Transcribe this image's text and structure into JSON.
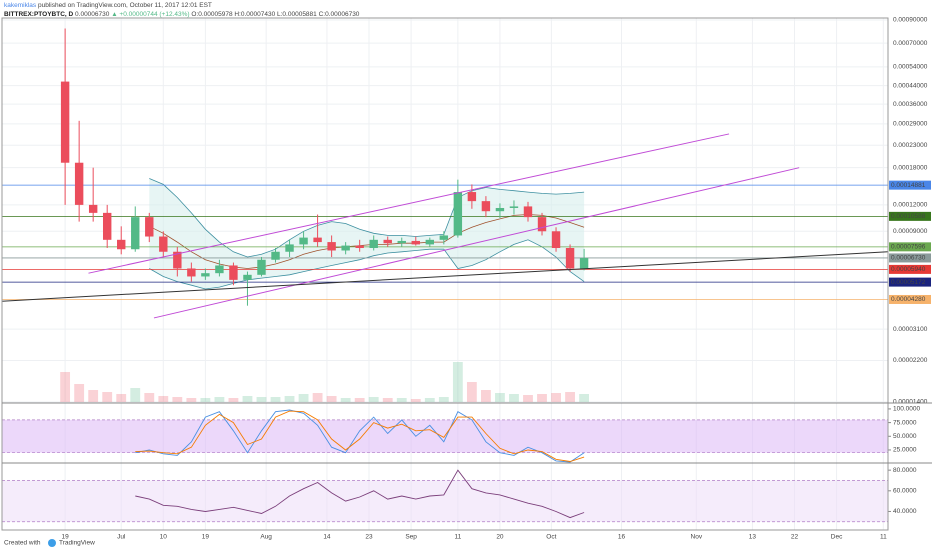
{
  "header": {
    "author": "kakemiklas",
    "byline": "published on TradingView.com, October 11, 2017 12:01 EST",
    "symbol": "BITTREX:PTOYBTC, D",
    "last": "0.00006730",
    "change": "▲ +0.00000744 (+12.43%)",
    "ohlc": "O:0.00005978 H:0.00007430 L:0.00005881 C:0.00006730"
  },
  "chart_data": [
    {
      "type": "candlestick",
      "log_scale": true,
      "grid": true,
      "up_color": "#53b987",
      "down_color": "#eb4d5c",
      "x": [
        0,
        3,
        6,
        9,
        12,
        15,
        18,
        21,
        24,
        27,
        30,
        33,
        36,
        39,
        42,
        45,
        48,
        51,
        54,
        57,
        60,
        63,
        66,
        69,
        72,
        75,
        78,
        81,
        84,
        87,
        90,
        93,
        96,
        99,
        102,
        105,
        108,
        111
      ],
      "open": [
        0.00046,
        0.00019,
        0.00012,
        0.00011,
        8.2e-05,
        7.4e-05,
        0.000105,
        8.5e-05,
        7.2e-05,
        6e-05,
        5.5e-05,
        5.7e-05,
        6.2e-05,
        5.3e-05,
        5.6e-05,
        6.6e-05,
        7.2e-05,
        7.8e-05,
        8.4e-05,
        8e-05,
        7.3e-05,
        7.7e-05,
        7.5e-05,
        8.2e-05,
        7.9e-05,
        8.1e-05,
        7.8e-05,
        8.2e-05,
        8.6e-05,
        0.000138,
        0.000125,
        0.000112,
        0.000116,
        0.000118,
        0.000105,
        9e-05,
        7.5e-05,
        6e-05
      ],
      "high": [
        0.00082,
        0.0003,
        0.00018,
        0.00012,
        9.5e-05,
        0.000118,
        0.00011,
        9e-05,
        7.6e-05,
        6.4e-05,
        6e-05,
        6.6e-05,
        6.4e-05,
        5.8e-05,
        6.8e-05,
        7.5e-05,
        8.2e-05,
        9e-05,
        0.000108,
        8.6e-05,
        8e-05,
        8.2e-05,
        8.6e-05,
        8.5e-05,
        8.4e-05,
        8.5e-05,
        8.4e-05,
        9e-05,
        0.000158,
        0.00015,
        0.000132,
        0.000122,
        0.000126,
        0.000124,
        0.00011,
        9.4e-05,
        7.8e-05,
        7.43e-05
      ],
      "low": [
        0.00012,
        0.0001,
        0.0001,
        7.5e-05,
        7e-05,
        7.2e-05,
        8e-05,
        6.8e-05,
        5.5e-05,
        5.2e-05,
        5.3e-05,
        5.5e-05,
        5e-05,
        4e-05,
        5.5e-05,
        6.4e-05,
        6.8e-05,
        7.4e-05,
        7.6e-05,
        6.8e-05,
        7e-05,
        7.2e-05,
        7.3e-05,
        7.6e-05,
        7.6e-05,
        7.7e-05,
        7.6e-05,
        7.8e-05,
        8.4e-05,
        0.000115,
        0.000105,
        0.000104,
        0.000108,
        0.0001,
        8.6e-05,
        7.2e-05,
        5.8e-05,
        5.88e-05
      ],
      "close": [
        0.00019,
        0.00012,
        0.00011,
        8.2e-05,
        7.4e-05,
        0.000105,
        8.5e-05,
        7.2e-05,
        6e-05,
        5.5e-05,
        5.7e-05,
        6.2e-05,
        5.3e-05,
        5.6e-05,
        6.6e-05,
        7.2e-05,
        7.8e-05,
        8.4e-05,
        8e-05,
        7.3e-05,
        7.7e-05,
        7.5e-05,
        8.2e-05,
        7.9e-05,
        8.1e-05,
        7.8e-05,
        8.2e-05,
        8.6e-05,
        0.000138,
        0.000125,
        0.000112,
        0.000116,
        0.000118,
        0.000105,
        9e-05,
        7.5e-05,
        6e-05,
        6.73e-05
      ],
      "volume": [
        30,
        18,
        12,
        10,
        8,
        14,
        9,
        6,
        5,
        4,
        4,
        5,
        4,
        6,
        5,
        5,
        6,
        8,
        9,
        6,
        4,
        4,
        5,
        4,
        4,
        3,
        4,
        5,
        40,
        20,
        12,
        9,
        8,
        7,
        8,
        9,
        10,
        8
      ],
      "bollinger": {
        "line_color": "#3d8fa0",
        "basis_color": "#a0522d",
        "fill": "#d7efec",
        "upper": [
          null,
          null,
          null,
          null,
          null,
          null,
          0.00016,
          0.00015,
          0.00013,
          0.00011,
          9.2e-05,
          8e-05,
          7.2e-05,
          6.8e-05,
          7e-05,
          7.4e-05,
          8.2e-05,
          9e-05,
          9.6e-05,
          0.0001,
          9.8e-05,
          9.2e-05,
          8.8e-05,
          8.6e-05,
          8.6e-05,
          8.5e-05,
          8.6e-05,
          8.7e-05,
          0.00013,
          0.00014,
          0.000145,
          0.000142,
          0.00014,
          0.000138,
          0.000136,
          0.000135,
          0.000136,
          0.000138
        ],
        "basis": [
          null,
          null,
          null,
          null,
          null,
          null,
          9.5e-05,
          8.8e-05,
          8e-05,
          7.2e-05,
          6.6e-05,
          6.3e-05,
          6.1e-05,
          6e-05,
          6.1e-05,
          6.3e-05,
          6.6e-05,
          7e-05,
          7.3e-05,
          7.5e-05,
          7.6e-05,
          7.7e-05,
          7.8e-05,
          7.8e-05,
          7.9e-05,
          7.9e-05,
          8e-05,
          8e-05,
          8.8e-05,
          9.4e-05,
          9.9e-05,
          0.000103,
          0.000107,
          0.000108,
          0.000107,
          0.000104,
          9.9e-05,
          9.4e-05
        ],
        "lower": [
          null,
          null,
          null,
          null,
          null,
          null,
          6e-05,
          5.5e-05,
          5.2e-05,
          5e-05,
          4.8e-05,
          4.9e-05,
          5.1e-05,
          5.3e-05,
          5.4e-05,
          5.5e-05,
          5.6e-05,
          5.8e-05,
          6e-05,
          6.2e-05,
          6.4e-05,
          6.6e-05,
          6.9e-05,
          7.1e-05,
          7.2e-05,
          7.3e-05,
          7.4e-05,
          7.4e-05,
          6e-05,
          6.2e-05,
          6.6e-05,
          7.2e-05,
          7.8e-05,
          8.2e-05,
          7.6e-05,
          6.8e-05,
          5.8e-05,
          5.2e-05
        ]
      },
      "trendlines": [
        {
          "x": [
            5,
            142
          ],
          "y": [
            5.7e-05,
            0.00026
          ],
          "color": "#c04bd6"
        },
        {
          "x": [
            19,
            157
          ],
          "y": [
            3.5e-05,
            0.00018
          ],
          "color": "#c04bd6"
        },
        {
          "x": [
            -13.5,
            176
          ],
          "y": [
            4.2e-05,
            7.2e-05
          ],
          "color": "#333333"
        }
      ],
      "levels": [
        {
          "value": 0.00014881,
          "label": "0.00014881",
          "color": "#4a86e8"
        },
        {
          "value": 0.00010588,
          "label": "0.00010588",
          "color": "#38761d"
        },
        {
          "value": 7.596e-05,
          "label": "0.00007596",
          "color": "#6aa84f"
        },
        {
          "value": 6.73e-05,
          "label": "0.00006730",
          "color": "#8a9a9a"
        },
        {
          "value": 5.94e-05,
          "label": "0.00005940",
          "color": "#e53935"
        },
        {
          "value": 5.172e-05,
          "label": "0.00005172",
          "color": "#1a237e"
        },
        {
          "value": 4.28e-05,
          "label": "0.00004280",
          "color": "#f6b26b"
        }
      ],
      "xlim": [
        -13.5,
        176
      ],
      "xticks": [
        {
          "value": 0,
          "label": "19"
        },
        {
          "value": 12,
          "label": "Jul"
        },
        {
          "value": 21,
          "label": "10"
        },
        {
          "value": 30,
          "label": "19"
        },
        {
          "value": 43,
          "label": "Aug"
        },
        {
          "value": 56,
          "label": "14"
        },
        {
          "value": 65,
          "label": "23"
        },
        {
          "value": 74,
          "label": "Sep"
        },
        {
          "value": 84,
          "label": "11"
        },
        {
          "value": 93,
          "label": "20"
        },
        {
          "value": 104,
          "label": "Oct"
        },
        {
          "value": 119,
          "label": "16"
        },
        {
          "value": 135,
          "label": "Nov"
        },
        {
          "value": 147,
          "label": "13"
        },
        {
          "value": 156,
          "label": "22"
        },
        {
          "value": 165,
          "label": "Dec"
        },
        {
          "value": 175,
          "label": "11"
        }
      ],
      "ylim": [
        1.4e-05,
        0.00092
      ],
      "yticks": [
        {
          "value": 0.0009,
          "label": "0.00090000"
        },
        {
          "value": 0.0007,
          "label": "0.00070000"
        },
        {
          "value": 0.00054,
          "label": "0.00054000"
        },
        {
          "value": 0.00044,
          "label": "0.00044000"
        },
        {
          "value": 0.00036,
          "label": "0.00036000"
        },
        {
          "value": 0.00029,
          "label": "0.00029000"
        },
        {
          "value": 0.00023,
          "label": "0.00023000"
        },
        {
          "value": 0.00018,
          "label": "0.00018000"
        },
        {
          "value": 0.00012,
          "label": "0.00012000"
        },
        {
          "value": 9e-05,
          "label": "0.00009000"
        },
        {
          "value": 3.1e-05,
          "label": "0.00003100"
        },
        {
          "value": 2.2e-05,
          "label": "0.00002200"
        },
        {
          "value": 1.4e-05,
          "label": "0.00001400"
        }
      ]
    },
    {
      "type": "line",
      "band": [
        20,
        80
      ],
      "band_color": "#dcb8f5",
      "x": [
        0,
        3,
        6,
        9,
        12,
        15,
        18,
        21,
        24,
        27,
        30,
        33,
        36,
        39,
        42,
        45,
        48,
        51,
        54,
        57,
        60,
        63,
        66,
        69,
        72,
        75,
        78,
        81,
        84,
        87,
        90,
        93,
        96,
        99,
        102,
        105,
        108,
        111
      ],
      "series": [
        {
          "color": "#4a90e2",
          "values": [
            null,
            null,
            null,
            null,
            null,
            20,
            25,
            18,
            15,
            40,
            85,
            95,
            60,
            20,
            60,
            95,
            98,
            92,
            70,
            30,
            20,
            60,
            85,
            55,
            80,
            50,
            70,
            40,
            95,
            80,
            40,
            20,
            15,
            30,
            20,
            5,
            3,
            20
          ]
        },
        {
          "color": "#f57c00",
          "values": [
            null,
            null,
            null,
            null,
            null,
            22,
            23,
            20,
            18,
            30,
            70,
            90,
            75,
            35,
            45,
            85,
            96,
            95,
            80,
            45,
            25,
            45,
            75,
            65,
            72,
            60,
            62,
            48,
            85,
            85,
            55,
            28,
            18,
            25,
            22,
            8,
            4,
            12
          ]
        }
      ],
      "ylim": [
        3,
        109
      ],
      "yticks": [
        {
          "value": 100,
          "label": "100.0000"
        },
        {
          "value": 75,
          "label": "75.0000"
        },
        {
          "value": 50,
          "label": "50.0000"
        },
        {
          "value": 25,
          "label": "25.0000"
        }
      ]
    },
    {
      "type": "line",
      "band": [
        30,
        70
      ],
      "band_color": "#ecdcf8",
      "x": [
        0,
        3,
        6,
        9,
        12,
        15,
        18,
        21,
        24,
        27,
        30,
        33,
        36,
        39,
        42,
        45,
        48,
        51,
        54,
        57,
        60,
        63,
        66,
        69,
        72,
        75,
        78,
        81,
        84,
        87,
        90,
        93,
        96,
        99,
        102,
        105,
        108,
        111
      ],
      "series": [
        {
          "color": "#7b3f7b",
          "values": [
            null,
            null,
            null,
            null,
            null,
            55,
            52,
            46,
            45,
            42,
            40,
            42,
            44,
            41,
            38,
            45,
            55,
            62,
            68,
            58,
            50,
            54,
            60,
            52,
            55,
            52,
            55,
            56,
            80,
            62,
            58,
            56,
            52,
            48,
            45,
            40,
            34,
            39
          ]
        }
      ],
      "ylim": [
        23,
        85
      ],
      "yticks": [
        {
          "value": 80,
          "label": "80.0000"
        },
        {
          "value": 60,
          "label": "60.0000"
        },
        {
          "value": 40,
          "label": "40.0000"
        }
      ]
    }
  ],
  "footer": {
    "created": "Created with",
    "brand": "TradingView"
  }
}
